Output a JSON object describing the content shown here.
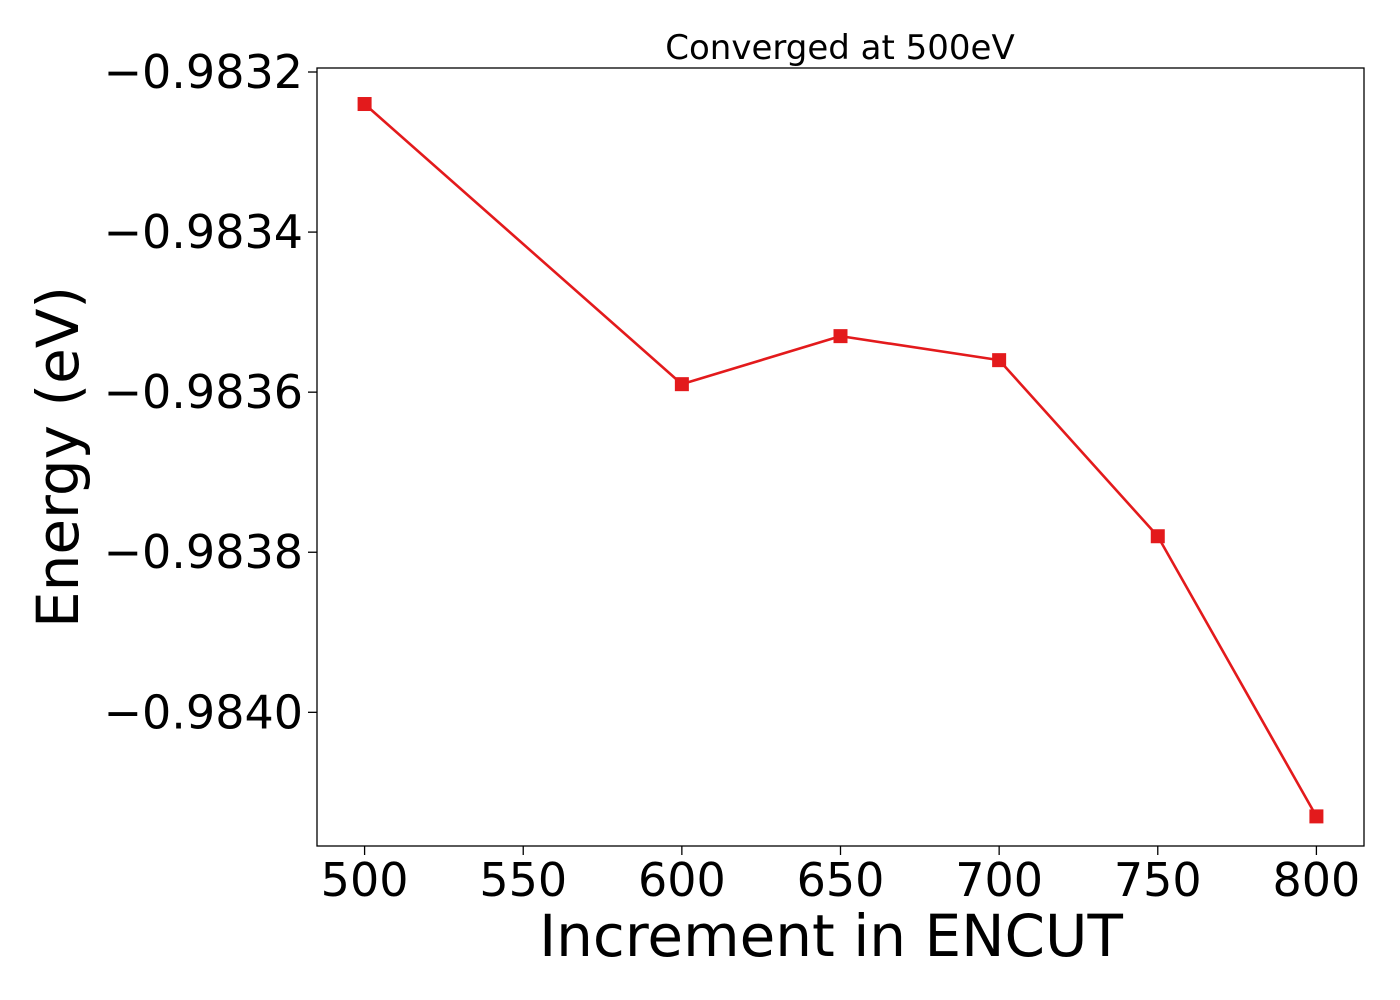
{
  "chart_data": {
    "type": "line",
    "title": "Converged at 500eV",
    "xlabel": "Increment in ENCUT",
    "ylabel": "Energy (eV)",
    "x": [
      500,
      600,
      650,
      700,
      750,
      800
    ],
    "series": [
      {
        "values": [
          -0.98324,
          -0.98359,
          -0.98353,
          -0.98356,
          -0.98378,
          -0.98413
        ],
        "color": "#e31a1c",
        "marker": "square"
      }
    ],
    "xlim": [
      485,
      815
    ],
    "ylim": [
      -0.984167,
      -0.983195
    ],
    "xticks": [
      500,
      550,
      600,
      650,
      700,
      750,
      800
    ],
    "xtick_labels": [
      "500",
      "550",
      "600",
      "650",
      "700",
      "750",
      "800"
    ],
    "yticks": [
      -0.9832,
      -0.9834,
      -0.9836,
      -0.9838,
      -0.984
    ],
    "ytick_labels": [
      "−0.9832",
      "−0.9834",
      "−0.9836",
      "−0.9838",
      "−0.9840"
    ],
    "grid": false,
    "legend": "none"
  }
}
